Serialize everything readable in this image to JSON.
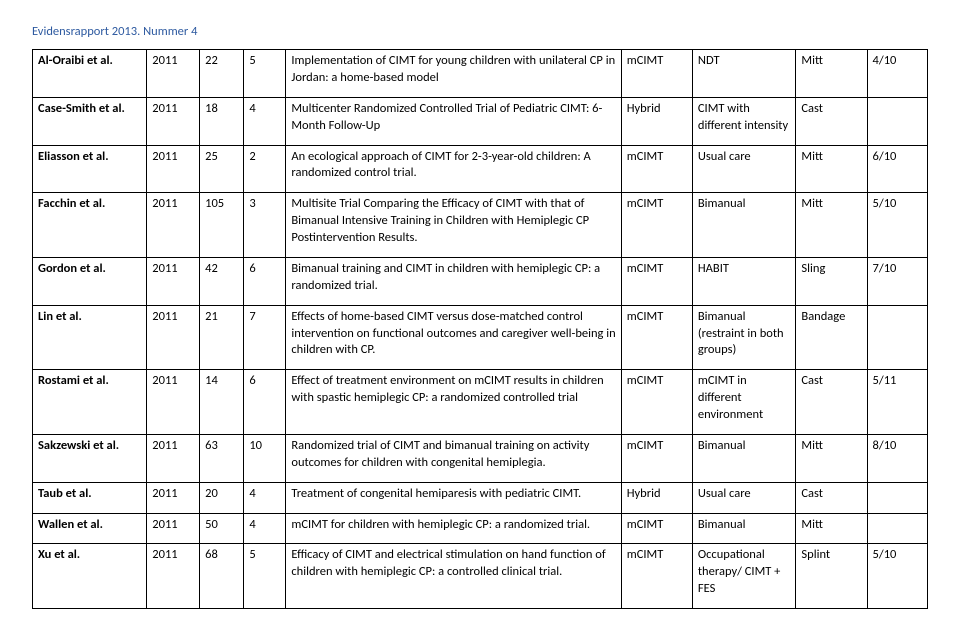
{
  "header": "Evidensrapport 2013. Nummer 4",
  "rows": [
    {
      "author": "Al-Oraibi et al.",
      "year": "2011",
      "n": "22",
      "m": "5",
      "desc": "Implementation of CIMT for young children with unilateral CP in Jordan: a home-based model",
      "type": "mCIMT",
      "ctrl": "NDT",
      "dev": "Mitt",
      "rating": "4/10"
    },
    {
      "author": "Case-Smith et al.",
      "year": "2011",
      "n": "18",
      "m": "4",
      "desc": "Multicenter Randomized Controlled Trial of Pediatric CIMT: 6-Month Follow-Up",
      "type": "Hybrid",
      "ctrl": "CIMT with different intensity",
      "dev": "Cast",
      "rating": ""
    },
    {
      "author": "Eliasson et al.",
      "year": "2011",
      "n": "25",
      "m": "2",
      "desc": "An ecological approach of CIMT for 2-3-year-old children: A randomized control trial.",
      "type": "mCIMT",
      "ctrl": "Usual care",
      "dev": "Mitt",
      "rating": "6/10"
    },
    {
      "author": "Facchin et al.",
      "year": "2011",
      "n": "105",
      "m": "3",
      "desc": "Multisite Trial Comparing the Efficacy of CIMT with that of Bimanual Intensive Training in Children with Hemiplegic CP Postintervention Results.",
      "type": "mCIMT",
      "ctrl": "Bimanual",
      "dev": "Mitt",
      "rating": "5/10"
    },
    {
      "author": "Gordon et al.",
      "year": "2011",
      "n": "42",
      "m": "6",
      "desc": "Bimanual training and CIMT in children with hemiplegic CP: a randomized trial.",
      "type": "mCIMT",
      "ctrl": "HABIT",
      "dev": "Sling",
      "rating": "7/10"
    },
    {
      "author": "Lin et al.",
      "year": "2011",
      "n": "21",
      "m": "7",
      "desc": "Effects of home-based CIMT versus dose-matched control intervention on functional outcomes and caregiver well-being in children with CP.",
      "type": "mCIMT",
      "ctrl": "Bimanual (restraint in both groups)",
      "dev": "Bandage",
      "rating": ""
    },
    {
      "author": "Rostami et al.",
      "year": "2011",
      "n": "14",
      "m": "6",
      "desc": "Effect of treatment environment on mCIMT results in children with spastic hemiplegic CP: a randomized controlled trial",
      "type": "mCIMT",
      "ctrl": "mCIMT in different environment",
      "dev": "Cast",
      "rating": "5/11"
    },
    {
      "author": "Sakzewski et al.",
      "year": "2011",
      "n": "63",
      "m": "10",
      "desc": "Randomized trial of CIMT and bimanual training on activity outcomes for children with congenital hemiplegia.",
      "type": "mCIMT",
      "ctrl": "Bimanual",
      "dev": "Mitt",
      "rating": "8/10"
    },
    {
      "author": "Taub et al.",
      "year": "2011",
      "n": "20",
      "m": "4",
      "desc": "Treatment of congenital hemiparesis with pediatric CIMT.",
      "type": "Hybrid",
      "ctrl": "Usual care",
      "dev": "Cast",
      "rating": ""
    },
    {
      "author": "Wallen et al.",
      "year": "2011",
      "n": "50",
      "m": "4",
      "desc": "mCIMT for children with hemiplegic CP: a randomized trial.",
      "type": "mCIMT",
      "ctrl": "Bimanual",
      "dev": "Mitt",
      "rating": ""
    },
    {
      "author": "Xu et al.",
      "year": "2011",
      "n": "68",
      "m": "5",
      "desc": "Efficacy of CIMT and electrical stimulation on hand function of children with hemiplegic CP: a controlled clinical trial.",
      "type": "mCIMT",
      "ctrl": "Occupational therapy/ CIMT + FES",
      "dev": "Splint",
      "rating": "5/10"
    }
  ]
}
